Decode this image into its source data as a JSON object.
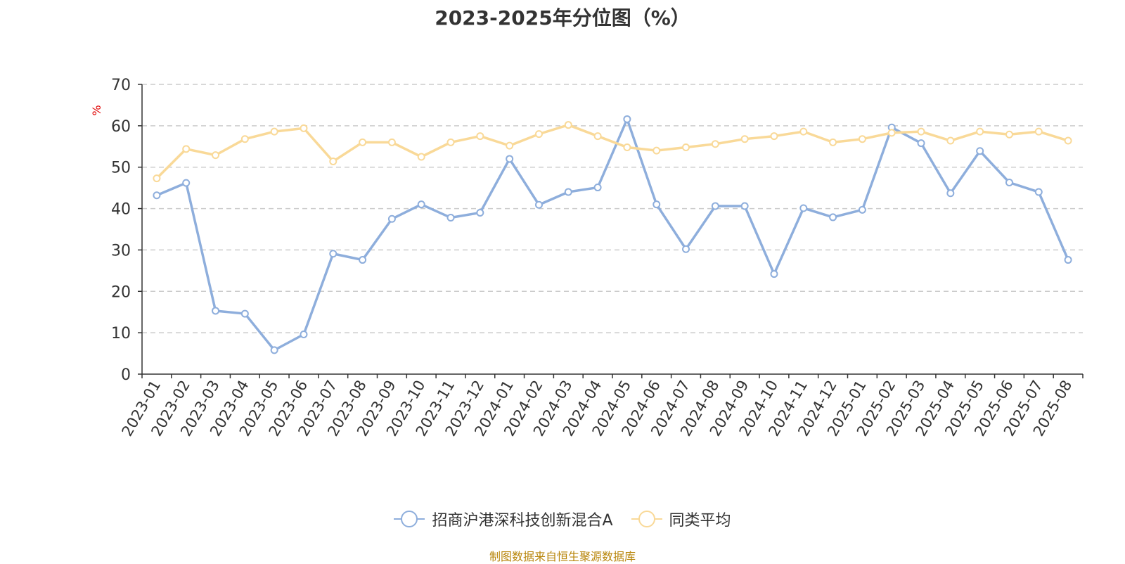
{
  "title": "2023-2025年分位图（%）",
  "source_note": "制图数据来自恒生聚源数据库",
  "colors": {
    "series1": "#8eaedc",
    "series2": "#f9d998",
    "unit": "#e00000",
    "grid": "#cccccc",
    "axis": "#333333"
  },
  "chart_data": {
    "type": "line",
    "title": "2023-2025年分位图（%）",
    "ylabel": "%",
    "xlabel": "",
    "ylim": [
      0,
      70
    ],
    "yticks": [
      0,
      10,
      20,
      30,
      40,
      50,
      60,
      70
    ],
    "grid": true,
    "legend": "bottom",
    "categories": [
      "2023-01",
      "2023-02",
      "2023-03",
      "2023-04",
      "2023-05",
      "2023-06",
      "2023-07",
      "2023-08",
      "2023-09",
      "2023-10",
      "2023-11",
      "2023-12",
      "2024-01",
      "2024-02",
      "2024-03",
      "2024-04",
      "2024-05",
      "2024-06",
      "2024-07",
      "2024-08",
      "2024-09",
      "2024-10",
      "2024-11",
      "2024-12",
      "2025-01",
      "2025-02",
      "2025-03",
      "2025-04",
      "2025-05",
      "2025-06",
      "2025-07",
      "2025-08"
    ],
    "series": [
      {
        "name": "招商沪港深科技创新混合A",
        "values": [
          43.2,
          46.2,
          15.3,
          14.6,
          5.8,
          9.6,
          29.1,
          27.6,
          37.5,
          41.0,
          37.8,
          39.0,
          52.0,
          40.9,
          44.0,
          45.1,
          61.6,
          41.0,
          30.2,
          40.6,
          40.6,
          24.2,
          40.1,
          37.9,
          39.7,
          59.6,
          55.8,
          43.7,
          53.9,
          46.3,
          44.0,
          27.6
        ]
      },
      {
        "name": "同类平均",
        "values": [
          47.3,
          54.4,
          52.9,
          56.8,
          58.6,
          59.4,
          51.4,
          56.0,
          56.0,
          52.5,
          56.0,
          57.5,
          55.2,
          58.0,
          60.2,
          57.5,
          54.8,
          54.0,
          54.8,
          55.6,
          56.8,
          57.5,
          58.6,
          56.0,
          56.8,
          58.3,
          58.6,
          56.4,
          58.6,
          57.9,
          58.6,
          56.4
        ]
      }
    ]
  }
}
